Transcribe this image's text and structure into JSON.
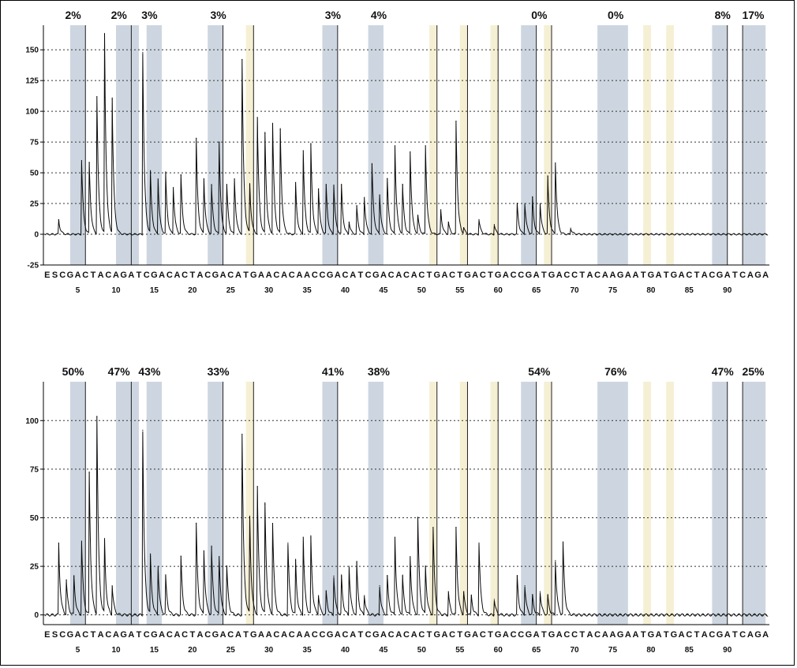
{
  "chart_data": [
    {
      "type": "line",
      "ylim": [
        -25,
        170
      ],
      "yticks": [
        -25,
        0,
        25,
        50,
        75,
        100,
        125,
        150
      ],
      "xlim": [
        -1,
        94
      ],
      "xticks": [
        5,
        10,
        15,
        20,
        25,
        30,
        35,
        40,
        45,
        50,
        55,
        60,
        65,
        70,
        75,
        80,
        85,
        90
      ],
      "grid": "horizontal-dotted",
      "percent_labels": [
        {
          "text": "2%",
          "x": 3.5
        },
        {
          "text": "2%",
          "x": 9.5
        },
        {
          "text": "3%",
          "x": 13.5
        },
        {
          "text": "3%",
          "x": 22.5
        },
        {
          "text": "3%",
          "x": 37.5
        },
        {
          "text": "4%",
          "x": 43.5
        },
        {
          "text": "0%",
          "x": 64.5
        },
        {
          "text": "0%",
          "x": 74.5
        },
        {
          "text": "8%",
          "x": 88.5
        },
        {
          "text": "17%",
          "x": 92.5
        }
      ],
      "peaks": [
        {
          "x": 1,
          "y": 12
        },
        {
          "x": 4,
          "y": 60
        },
        {
          "x": 5,
          "y": 58
        },
        {
          "x": 6,
          "y": 112
        },
        {
          "x": 7,
          "y": 162
        },
        {
          "x": 8,
          "y": 110
        },
        {
          "x": 12,
          "y": 148
        },
        {
          "x": 13,
          "y": 50
        },
        {
          "x": 14,
          "y": 45
        },
        {
          "x": 15,
          "y": 50
        },
        {
          "x": 16,
          "y": 38
        },
        {
          "x": 17,
          "y": 48
        },
        {
          "x": 19,
          "y": 78
        },
        {
          "x": 20,
          "y": 45
        },
        {
          "x": 21,
          "y": 40
        },
        {
          "x": 22,
          "y": 75
        },
        {
          "x": 23,
          "y": 40
        },
        {
          "x": 24,
          "y": 45
        },
        {
          "x": 25,
          "y": 142
        },
        {
          "x": 26,
          "y": 40
        },
        {
          "x": 27,
          "y": 95
        },
        {
          "x": 28,
          "y": 82
        },
        {
          "x": 29,
          "y": 90
        },
        {
          "x": 30,
          "y": 85
        },
        {
          "x": 32,
          "y": 42
        },
        {
          "x": 33,
          "y": 68
        },
        {
          "x": 34,
          "y": 73
        },
        {
          "x": 35,
          "y": 37
        },
        {
          "x": 36,
          "y": 40
        },
        {
          "x": 37,
          "y": 40
        },
        {
          "x": 38,
          "y": 40
        },
        {
          "x": 39,
          "y": 10
        },
        {
          "x": 40,
          "y": 23
        },
        {
          "x": 41,
          "y": 30
        },
        {
          "x": 42,
          "y": 57
        },
        {
          "x": 43,
          "y": 32
        },
        {
          "x": 44,
          "y": 45
        },
        {
          "x": 45,
          "y": 72
        },
        {
          "x": 46,
          "y": 40
        },
        {
          "x": 47,
          "y": 67
        },
        {
          "x": 48,
          "y": 15
        },
        {
          "x": 49,
          "y": 72
        },
        {
          "x": 51,
          "y": 20
        },
        {
          "x": 52,
          "y": 10
        },
        {
          "x": 53,
          "y": 92
        },
        {
          "x": 54,
          "y": 5
        },
        {
          "x": 56,
          "y": 12
        },
        {
          "x": 58,
          "y": 8
        },
        {
          "x": 61,
          "y": 25
        },
        {
          "x": 62,
          "y": 25
        },
        {
          "x": 63,
          "y": 30
        },
        {
          "x": 64,
          "y": 25
        },
        {
          "x": 65,
          "y": 47
        },
        {
          "x": 66,
          "y": 58
        },
        {
          "x": 68,
          "y": 5
        }
      ]
    },
    {
      "type": "line",
      "ylim": [
        -5,
        120
      ],
      "yticks": [
        0,
        25,
        50,
        75,
        100
      ],
      "xlim": [
        -1,
        94
      ],
      "xticks": [
        5,
        10,
        15,
        20,
        25,
        30,
        35,
        40,
        45,
        50,
        55,
        60,
        65,
        70,
        75,
        80,
        85,
        90
      ],
      "grid": "horizontal-dotted",
      "percent_labels": [
        {
          "text": "50%",
          "x": 3.5
        },
        {
          "text": "47%",
          "x": 9.5
        },
        {
          "text": "43%",
          "x": 13.5
        },
        {
          "text": "33%",
          "x": 22.5
        },
        {
          "text": "41%",
          "x": 37.5
        },
        {
          "text": "38%",
          "x": 43.5
        },
        {
          "text": "54%",
          "x": 64.5
        },
        {
          "text": "76%",
          "x": 74.5
        },
        {
          "text": "47%",
          "x": 88.5
        },
        {
          "text": "25%",
          "x": 92.5
        }
      ],
      "peaks": [
        {
          "x": 1,
          "y": 37
        },
        {
          "x": 2,
          "y": 18
        },
        {
          "x": 3,
          "y": 20
        },
        {
          "x": 4,
          "y": 38
        },
        {
          "x": 5,
          "y": 73
        },
        {
          "x": 6,
          "y": 102
        },
        {
          "x": 7,
          "y": 38
        },
        {
          "x": 8,
          "y": 15
        },
        {
          "x": 12,
          "y": 95
        },
        {
          "x": 13,
          "y": 30
        },
        {
          "x": 14,
          "y": 25
        },
        {
          "x": 15,
          "y": 20
        },
        {
          "x": 17,
          "y": 30
        },
        {
          "x": 19,
          "y": 47
        },
        {
          "x": 20,
          "y": 33
        },
        {
          "x": 21,
          "y": 35
        },
        {
          "x": 22,
          "y": 30
        },
        {
          "x": 23,
          "y": 25
        },
        {
          "x": 25,
          "y": 93
        },
        {
          "x": 26,
          "y": 50
        },
        {
          "x": 27,
          "y": 66
        },
        {
          "x": 28,
          "y": 57
        },
        {
          "x": 29,
          "y": 47
        },
        {
          "x": 31,
          "y": 37
        },
        {
          "x": 32,
          "y": 28
        },
        {
          "x": 33,
          "y": 40
        },
        {
          "x": 34,
          "y": 40
        },
        {
          "x": 35,
          "y": 10
        },
        {
          "x": 36,
          "y": 12
        },
        {
          "x": 37,
          "y": 20
        },
        {
          "x": 38,
          "y": 20
        },
        {
          "x": 39,
          "y": 25
        },
        {
          "x": 40,
          "y": 27
        },
        {
          "x": 41,
          "y": 10
        },
        {
          "x": 43,
          "y": 15
        },
        {
          "x": 44,
          "y": 20
        },
        {
          "x": 45,
          "y": 40
        },
        {
          "x": 46,
          "y": 20
        },
        {
          "x": 47,
          "y": 30
        },
        {
          "x": 48,
          "y": 50
        },
        {
          "x": 49,
          "y": 25
        },
        {
          "x": 50,
          "y": 45
        },
        {
          "x": 52,
          "y": 12
        },
        {
          "x": 53,
          "y": 45
        },
        {
          "x": 54,
          "y": 12
        },
        {
          "x": 55,
          "y": 10
        },
        {
          "x": 56,
          "y": 37
        },
        {
          "x": 58,
          "y": 8
        },
        {
          "x": 61,
          "y": 20
        },
        {
          "x": 62,
          "y": 15
        },
        {
          "x": 63,
          "y": 10
        },
        {
          "x": 64,
          "y": 12
        },
        {
          "x": 65,
          "y": 10
        },
        {
          "x": 66,
          "y": 28
        },
        {
          "x": 67,
          "y": 37
        }
      ]
    }
  ],
  "shaded_bands": [
    {
      "x0": 2.5,
      "x1": 4.5,
      "color": "#cdd6e0"
    },
    {
      "x0": 8.5,
      "x1": 11.5,
      "color": "#cdd6e0"
    },
    {
      "x0": 12.5,
      "x1": 14.5,
      "color": "#cdd6e0"
    },
    {
      "x0": 20.5,
      "x1": 22.5,
      "color": "#cdd6e0"
    },
    {
      "x0": 25.5,
      "x1": 26.5,
      "color": "#f5efd4"
    },
    {
      "x0": 35.5,
      "x1": 37.5,
      "color": "#cdd6e0"
    },
    {
      "x0": 41.5,
      "x1": 43.5,
      "color": "#cdd6e0"
    },
    {
      "x0": 49.5,
      "x1": 50.5,
      "color": "#f5efd4"
    },
    {
      "x0": 53.5,
      "x1": 54.5,
      "color": "#f5efd4"
    },
    {
      "x0": 57.5,
      "x1": 58.5,
      "color": "#f5efd4"
    },
    {
      "x0": 61.5,
      "x1": 63.5,
      "color": "#cdd6e0"
    },
    {
      "x0": 64.5,
      "x1": 65.5,
      "color": "#f5efd4"
    },
    {
      "x0": 71.5,
      "x1": 75.5,
      "color": "#cdd6e0"
    },
    {
      "x0": 77.5,
      "x1": 78.5,
      "color": "#f5efd4"
    },
    {
      "x0": 80.5,
      "x1": 81.5,
      "color": "#f5efd4"
    },
    {
      "x0": 86.5,
      "x1": 88.5,
      "color": "#cdd6e0"
    },
    {
      "x0": 90.5,
      "x1": 93.5,
      "color": "#cdd6e0"
    }
  ],
  "marker_lines": [
    4.5,
    10.5,
    22.5,
    26.5,
    37.5,
    50.5,
    54.5,
    58.5,
    63.5,
    65.5,
    88.5,
    90.5
  ],
  "dispensation_sequence": [
    "E",
    "S",
    "C",
    "G",
    "A",
    "C",
    "T",
    "A",
    "C",
    "A",
    "G",
    "A",
    "T",
    "C",
    "G",
    "A",
    "C",
    "A",
    "C",
    "T",
    "A",
    "C",
    "G",
    "A",
    "C",
    "A",
    "T",
    "G",
    "A",
    "A",
    "C",
    "A",
    "C",
    "A",
    "A",
    "C",
    "C",
    "G",
    "A",
    "C",
    "A",
    "T",
    "C",
    "G",
    "A",
    "C",
    "A",
    "C",
    "A",
    "C",
    "T",
    "G",
    "A",
    "C",
    "T",
    "G",
    "A",
    "C",
    "T",
    "G",
    "A",
    "C",
    "C",
    "G",
    "A",
    "T",
    "G",
    "A",
    "C",
    "C",
    "T",
    "A",
    "C",
    "A",
    "A",
    "G",
    "A",
    "A",
    "T",
    "G",
    "A",
    "T",
    "G",
    "A",
    "C",
    "T",
    "A",
    "C",
    "G",
    "A",
    "T",
    "C",
    "A",
    "G",
    "A"
  ],
  "colors": {
    "band_blue": "#cdd6e0",
    "band_yellow": "#f5efd4",
    "trace": "#0a0a0a",
    "grid": "#333333"
  }
}
